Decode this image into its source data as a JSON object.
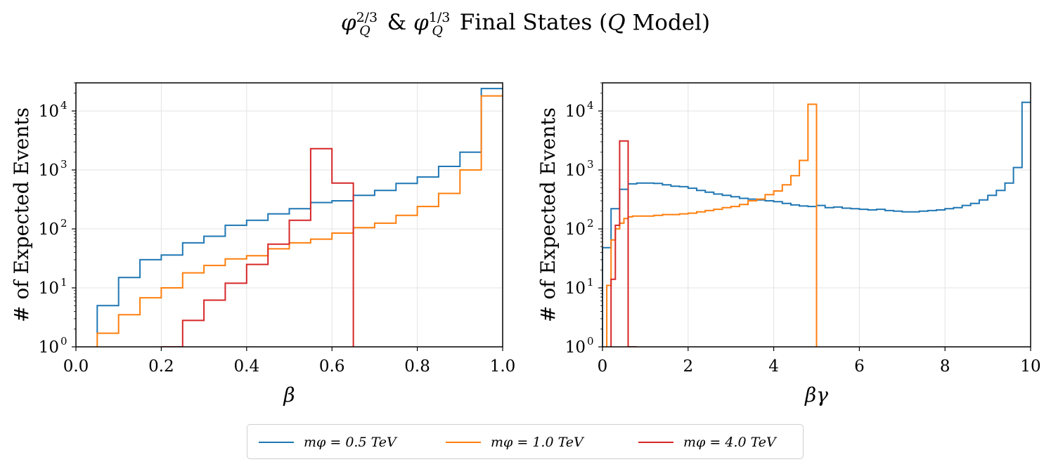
{
  "figure_title": {
    "phi": "φ",
    "sup1": "2/3",
    "sub1": "Q",
    "amp": "&",
    "sup2": "1/3",
    "sub2": "Q",
    "rest": "Final States (",
    "model_q": "Q",
    "model": "Model)"
  },
  "colors": {
    "blue": "#1f77b4",
    "orange": "#ff7f0e",
    "red": "#d62728",
    "grid": "#e3e3e3"
  },
  "legend": [
    {
      "label": "mφ = 0.5 TeV",
      "color": "#1f77b4"
    },
    {
      "label": "mφ = 1.0 TeV",
      "color": "#ff7f0e"
    },
    {
      "label": "mφ = 4.0 TeV",
      "color": "#d62728"
    }
  ],
  "chart_data": [
    {
      "type": "line",
      "style": "step-histogram",
      "xlabel": "β",
      "ylabel": "# of Expected Events",
      "xlim": [
        0.0,
        1.0
      ],
      "ylim": [
        1,
        30000
      ],
      "yscale": "log",
      "grid": true,
      "x_ticks": [
        "0.0",
        "0.2",
        "0.4",
        "0.6",
        "0.8",
        "1.0"
      ],
      "x_tick_values": [
        0.0,
        0.2,
        0.4,
        0.6,
        0.8,
        1.0
      ],
      "y_ticks": [
        {
          "base": "10",
          "exp": "0",
          "value": 1
        },
        {
          "base": "10",
          "exp": "1",
          "value": 10
        },
        {
          "base": "10",
          "exp": "2",
          "value": 100
        },
        {
          "base": "10",
          "exp": "3",
          "value": 1000
        },
        {
          "base": "10",
          "exp": "4",
          "value": 10000
        }
      ],
      "series": [
        {
          "name": "mφ = 0.5 TeV",
          "color": "#1f77b4",
          "edges": [
            0.05,
            0.1,
            0.15,
            0.2,
            0.25,
            0.3,
            0.35,
            0.4,
            0.45,
            0.5,
            0.55,
            0.6,
            0.65,
            0.7,
            0.75,
            0.8,
            0.85,
            0.9,
            0.95,
            1.0
          ],
          "values": [
            5,
            15,
            30,
            36,
            58,
            75,
            115,
            140,
            180,
            220,
            280,
            300,
            370,
            450,
            590,
            760,
            1150,
            2000,
            24000
          ],
          "start": 1.7
        },
        {
          "name": "mφ = 1.0 TeV",
          "color": "#ff7f0e",
          "edges": [
            0.05,
            0.1,
            0.15,
            0.2,
            0.25,
            0.3,
            0.35,
            0.4,
            0.45,
            0.5,
            0.55,
            0.6,
            0.65,
            0.7,
            0.75,
            0.8,
            0.85,
            0.9,
            0.95,
            1.0
          ],
          "values": [
            1.7,
            3.5,
            6.8,
            10,
            18,
            24,
            31,
            35,
            46,
            58,
            67,
            85,
            105,
            125,
            170,
            240,
            400,
            1000,
            18000
          ],
          "start": 1
        },
        {
          "name": "mφ = 4.0 TeV",
          "color": "#d62728",
          "edges": [
            0.2,
            0.25,
            0.3,
            0.35,
            0.4,
            0.45,
            0.5,
            0.55,
            0.6,
            0.65
          ],
          "values": [
            1,
            2.8,
            6.2,
            12,
            25,
            55,
            140,
            2300,
            600
          ],
          "start": 1,
          "end": 1
        }
      ]
    },
    {
      "type": "line",
      "style": "step-histogram",
      "xlabel": "βγ",
      "ylabel": "# of Expected Events",
      "xlim": [
        0,
        10
      ],
      "ylim": [
        1,
        30000
      ],
      "yscale": "log",
      "grid": true,
      "x_ticks": [
        "0",
        "2",
        "4",
        "6",
        "8",
        "10"
      ],
      "x_tick_values": [
        0,
        2,
        4,
        6,
        8,
        10
      ],
      "y_ticks": [
        {
          "base": "10",
          "exp": "0",
          "value": 1
        },
        {
          "base": "10",
          "exp": "1",
          "value": 10
        },
        {
          "base": "10",
          "exp": "2",
          "value": 100
        },
        {
          "base": "10",
          "exp": "3",
          "value": 1000
        },
        {
          "base": "10",
          "exp": "4",
          "value": 10000
        }
      ],
      "series": [
        {
          "name": "mφ = 0.5 TeV",
          "color": "#1f77b4",
          "edges": [
            0.0,
            0.2,
            0.4,
            0.6,
            0.8,
            1.0,
            1.2,
            1.4,
            1.6,
            1.8,
            2.0,
            2.2,
            2.4,
            2.6,
            2.8,
            3.0,
            3.2,
            3.4,
            3.6,
            3.8,
            4.0,
            4.2,
            4.4,
            4.6,
            4.8,
            5.0,
            5.2,
            5.4,
            5.6,
            5.8,
            6.0,
            6.2,
            6.4,
            6.6,
            6.8,
            7.0,
            7.2,
            7.4,
            7.6,
            7.8,
            8.0,
            8.2,
            8.4,
            8.6,
            8.8,
            9.0,
            9.2,
            9.4,
            9.6,
            9.8,
            10.0
          ],
          "values": [
            48,
            220,
            470,
            580,
            600,
            600,
            590,
            560,
            530,
            520,
            490,
            450,
            420,
            390,
            370,
            350,
            330,
            320,
            310,
            300,
            290,
            270,
            255,
            245,
            240,
            250,
            230,
            235,
            225,
            220,
            215,
            210,
            215,
            205,
            200,
            195,
            195,
            200,
            205,
            210,
            220,
            230,
            250,
            270,
            310,
            370,
            450,
            600,
            1100,
            14000
          ],
          "start": 1
        },
        {
          "name": "mφ = 1.0 TeV",
          "color": "#ff7f0e",
          "edges": [
            0.1,
            0.2,
            0.3,
            0.4,
            0.5,
            0.6,
            0.7,
            0.8,
            1.0,
            1.2,
            1.4,
            1.6,
            1.8,
            2.0,
            2.2,
            2.4,
            2.6,
            2.8,
            3.0,
            3.2,
            3.4,
            3.6,
            3.8,
            4.0,
            4.2,
            4.4,
            4.6,
            4.8,
            5.0
          ],
          "values": [
            11,
            65,
            100,
            125,
            150,
            160,
            165,
            165,
            165,
            170,
            175,
            175,
            180,
            185,
            195,
            205,
            215,
            230,
            240,
            260,
            300,
            320,
            380,
            440,
            560,
            800,
            1450,
            13000
          ],
          "start": 1,
          "end": 1
        },
        {
          "name": "mφ = 4.0 TeV",
          "color": "#d62728",
          "edges": [
            0.2,
            0.3,
            0.4,
            0.6,
            0.8
          ],
          "values": [
            14,
            115,
            3100,
            1
          ],
          "start": 1,
          "end": 1
        }
      ]
    }
  ]
}
